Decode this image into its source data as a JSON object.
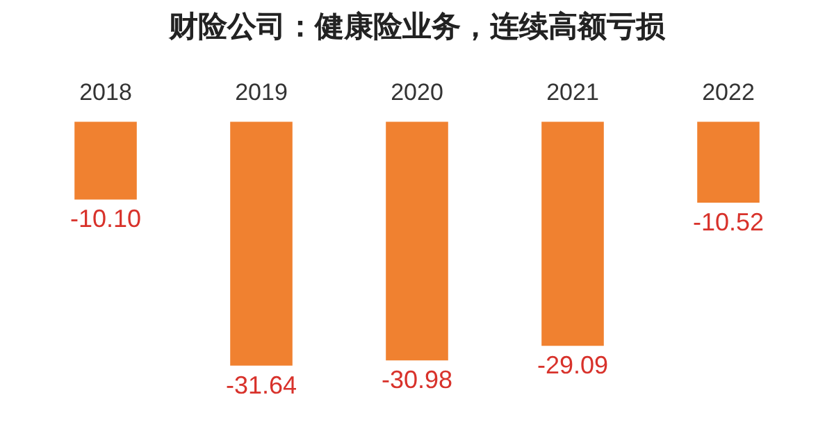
{
  "chart_data": {
    "type": "bar",
    "title": "财险公司：健康险业务，连续高额亏损",
    "categories": [
      "2018",
      "2019",
      "2020",
      "2021",
      "2022"
    ],
    "values": [
      -10.1,
      -31.64,
      -30.98,
      -29.09,
      -10.52
    ],
    "value_labels": [
      "-10.10",
      "-31.64",
      "-30.98",
      "-29.09",
      "-10.52"
    ],
    "color": "#f08130",
    "grid": false,
    "legend": false
  }
}
